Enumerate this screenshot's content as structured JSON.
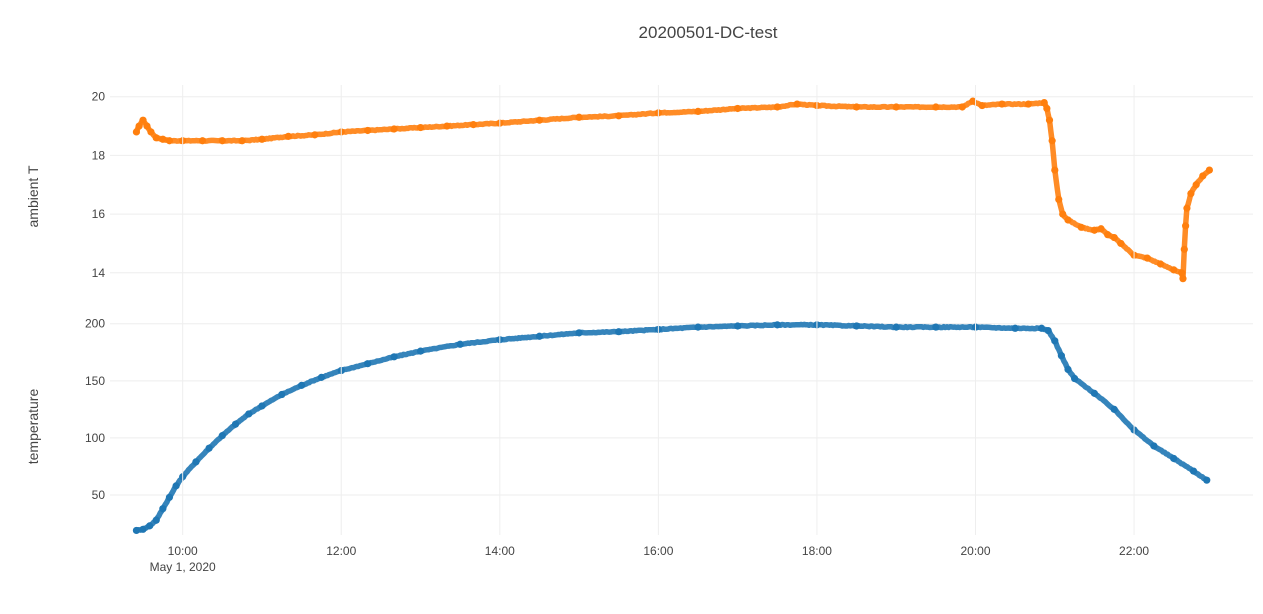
{
  "colors": {
    "series_ambient": "#ff7f0e",
    "series_temperature": "#1f77b4",
    "grid": "#eeeeee",
    "text": "#444444"
  },
  "chart_data": {
    "type": "scatter",
    "title": "20200501-DC-test",
    "grid": true,
    "legend": "none",
    "x_axis": {
      "type": "time",
      "range": [
        "2020-05-01 09:05",
        "2020-05-01 23:30"
      ],
      "ticks": [
        {
          "value": "2020-05-01 10:00",
          "label": "10:00",
          "sublabel": "May 1, 2020"
        },
        {
          "value": "2020-05-01 12:00",
          "label": "12:00"
        },
        {
          "value": "2020-05-01 14:00",
          "label": "14:00"
        },
        {
          "value": "2020-05-01 16:00",
          "label": "16:00"
        },
        {
          "value": "2020-05-01 18:00",
          "label": "18:00"
        },
        {
          "value": "2020-05-01 20:00",
          "label": "20:00"
        },
        {
          "value": "2020-05-01 22:00",
          "label": "22:00"
        }
      ]
    },
    "panels": [
      {
        "ylabel": "ambient T",
        "ylim": [
          12.8,
          20.4
        ],
        "yticks": [
          14,
          16,
          18,
          20
        ],
        "series": [
          {
            "color": "#ff7f0e",
            "x": [
              "2020-05-01 09:25",
              "2020-05-01 09:27",
              "2020-05-01 09:30",
              "2020-05-01 09:33",
              "2020-05-01 09:36",
              "2020-05-01 09:40",
              "2020-05-01 09:45",
              "2020-05-01 09:50",
              "2020-05-01 10:00",
              "2020-05-01 10:15",
              "2020-05-01 10:30",
              "2020-05-01 10:45",
              "2020-05-01 11:00",
              "2020-05-01 11:20",
              "2020-05-01 11:40",
              "2020-05-01 12:00",
              "2020-05-01 12:20",
              "2020-05-01 12:40",
              "2020-05-01 13:00",
              "2020-05-01 13:20",
              "2020-05-01 13:40",
              "2020-05-01 14:00",
              "2020-05-01 14:30",
              "2020-05-01 15:00",
              "2020-05-01 15:30",
              "2020-05-01 16:00",
              "2020-05-01 16:30",
              "2020-05-01 17:00",
              "2020-05-01 17:30",
              "2020-05-01 17:45",
              "2020-05-01 18:00",
              "2020-05-01 18:30",
              "2020-05-01 19:00",
              "2020-05-01 19:30",
              "2020-05-01 19:50",
              "2020-05-01 19:58",
              "2020-05-01 20:05",
              "2020-05-01 20:20",
              "2020-05-01 20:40",
              "2020-05-01 20:52",
              "2020-05-01 20:54",
              "2020-05-01 20:56",
              "2020-05-01 20:58",
              "2020-05-01 21:00",
              "2020-05-01 21:03",
              "2020-05-01 21:06",
              "2020-05-01 21:10",
              "2020-05-01 21:20",
              "2020-05-01 21:30",
              "2020-05-01 21:35",
              "2020-05-01 21:40",
              "2020-05-01 21:45",
              "2020-05-01 21:50",
              "2020-05-01 22:00",
              "2020-05-01 22:10",
              "2020-05-01 22:20",
              "2020-05-01 22:30",
              "2020-05-01 22:36",
              "2020-05-01 22:37",
              "2020-05-01 22:38",
              "2020-05-01 22:39",
              "2020-05-01 22:40",
              "2020-05-01 22:43",
              "2020-05-01 22:47",
              "2020-05-01 22:52",
              "2020-05-01 22:57"
            ],
            "y": [
              18.8,
              19.0,
              19.2,
              19.0,
              18.8,
              18.6,
              18.55,
              18.5,
              18.5,
              18.5,
              18.5,
              18.5,
              18.55,
              18.65,
              18.7,
              18.8,
              18.85,
              18.9,
              18.95,
              19.0,
              19.05,
              19.1,
              19.2,
              19.3,
              19.35,
              19.45,
              19.5,
              19.6,
              19.65,
              19.75,
              19.7,
              19.65,
              19.65,
              19.65,
              19.65,
              19.85,
              19.7,
              19.75,
              19.75,
              19.8,
              19.6,
              19.2,
              18.5,
              17.5,
              16.5,
              16.0,
              15.8,
              15.55,
              15.45,
              15.5,
              15.3,
              15.2,
              15.0,
              14.6,
              14.5,
              14.3,
              14.1,
              14.0,
              13.8,
              14.8,
              15.6,
              16.2,
              16.7,
              17.0,
              17.3,
              17.5
            ]
          }
        ]
      },
      {
        "ylabel": "temperature",
        "ylim": [
          15,
          205
        ],
        "yticks": [
          50,
          100,
          150,
          200
        ],
        "series": [
          {
            "color": "#1f77b4",
            "x": [
              "2020-05-01 09:25",
              "2020-05-01 09:30",
              "2020-05-01 09:35",
              "2020-05-01 09:40",
              "2020-05-01 09:45",
              "2020-05-01 09:50",
              "2020-05-01 09:55",
              "2020-05-01 10:00",
              "2020-05-01 10:10",
              "2020-05-01 10:20",
              "2020-05-01 10:30",
              "2020-05-01 10:40",
              "2020-05-01 10:50",
              "2020-05-01 11:00",
              "2020-05-01 11:15",
              "2020-05-01 11:30",
              "2020-05-01 11:45",
              "2020-05-01 12:00",
              "2020-05-01 12:20",
              "2020-05-01 12:40",
              "2020-05-01 13:00",
              "2020-05-01 13:30",
              "2020-05-01 14:00",
              "2020-05-01 14:30",
              "2020-05-01 15:00",
              "2020-05-01 15:30",
              "2020-05-01 16:00",
              "2020-05-01 16:30",
              "2020-05-01 17:00",
              "2020-05-01 17:30",
              "2020-05-01 18:00",
              "2020-05-01 18:30",
              "2020-05-01 19:00",
              "2020-05-01 19:30",
              "2020-05-01 20:00",
              "2020-05-01 20:30",
              "2020-05-01 20:50",
              "2020-05-01 20:55",
              "2020-05-01 21:00",
              "2020-05-01 21:05",
              "2020-05-01 21:10",
              "2020-05-01 21:15",
              "2020-05-01 21:30",
              "2020-05-01 21:45",
              "2020-05-01 22:00",
              "2020-05-01 22:15",
              "2020-05-01 22:30",
              "2020-05-01 22:45",
              "2020-05-01 22:55"
            ],
            "y": [
              19,
              20,
              23,
              28,
              38,
              48,
              58,
              66,
              79,
              91,
              102,
              112,
              121,
              128,
              138,
              146,
              153,
              159,
              165,
              171,
              176,
              182,
              186,
              189,
              192,
              193,
              195,
              197,
              198,
              199,
              199,
              198,
              197,
              197,
              197,
              196,
              196,
              194,
              185,
              172,
              160,
              152,
              139,
              125,
              107,
              93,
              82,
              71,
              63
            ]
          }
        ]
      }
    ]
  }
}
